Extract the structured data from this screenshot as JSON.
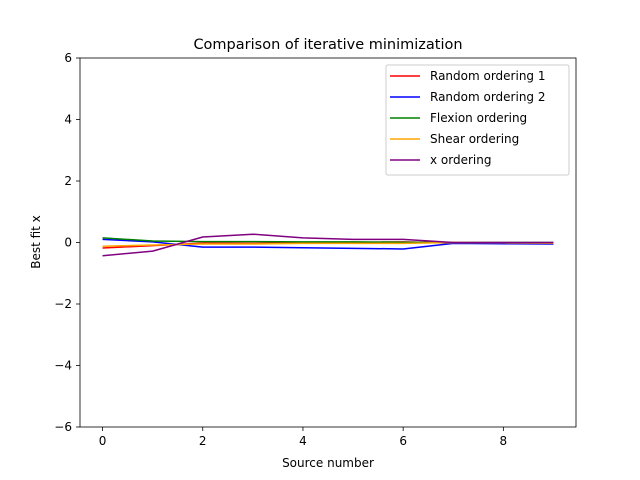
{
  "chart_data": {
    "type": "line",
    "title": "Comparison of iterative minimization",
    "xlabel": "Source number",
    "ylabel": "Best fit x",
    "xlim": [
      -0.45,
      9.45
    ],
    "ylim": [
      -6,
      6
    ],
    "xticks": [
      0,
      2,
      4,
      6,
      8
    ],
    "yticks": [
      -6,
      -4,
      -2,
      0,
      2,
      4,
      6
    ],
    "ytick_labels": [
      "−6",
      "−4",
      "−2",
      "0",
      "2",
      "4",
      "6"
    ],
    "legend_position": "top-right",
    "grid": false,
    "x": [
      0,
      1,
      2,
      3,
      4,
      5,
      6,
      7,
      8,
      9
    ],
    "series": [
      {
        "name": "Random ordering 1",
        "color": "#ff0000",
        "values": [
          -0.18,
          -0.1,
          -0.02,
          -0.03,
          -0.01,
          0.0,
          0.02,
          -0.02,
          -0.02,
          -0.02
        ]
      },
      {
        "name": "Random ordering 2",
        "color": "#0000ff",
        "values": [
          0.1,
          0.02,
          -0.15,
          -0.15,
          -0.17,
          -0.19,
          -0.21,
          -0.03,
          -0.04,
          -0.05
        ]
      },
      {
        "name": "Flexion ordering",
        "color": "#008000",
        "values": [
          0.15,
          0.05,
          0.03,
          0.03,
          0.02,
          0.02,
          0.01,
          0.0,
          0.0,
          0.0
        ]
      },
      {
        "name": "Shear ordering",
        "color": "#ffa500",
        "values": [
          -0.12,
          -0.08,
          -0.05,
          -0.05,
          -0.03,
          -0.03,
          -0.03,
          0.0,
          -0.01,
          -0.02
        ]
      },
      {
        "name": "x ordering",
        "color": "#800080",
        "values": [
          -0.43,
          -0.28,
          0.18,
          0.27,
          0.15,
          0.1,
          0.1,
          0.0,
          0.0,
          0.0
        ]
      }
    ]
  }
}
